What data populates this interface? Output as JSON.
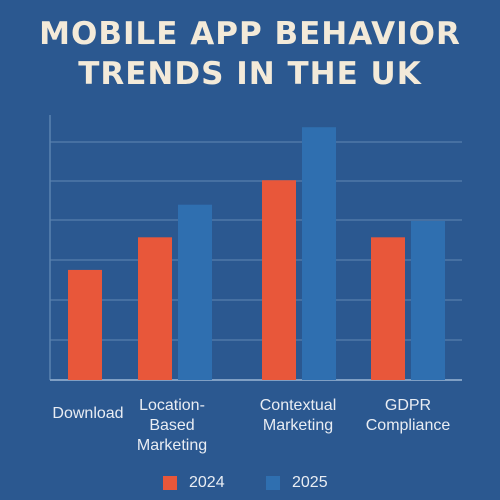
{
  "chart_data": {
    "type": "bar",
    "title": [
      "MOBILE APP BEHAVIOR",
      "TRENDS IN THE UK"
    ],
    "categories": [
      [
        "Download"
      ],
      [
        "Location-",
        "Based",
        "Marketing"
      ],
      [
        "Contextual",
        "Marketing"
      ],
      [
        "GDPR",
        "Compliance"
      ]
    ],
    "series": [
      {
        "name": "2024",
        "color": "#e8573a",
        "values": [
          27,
          35,
          49,
          35
        ]
      },
      {
        "name": "2025",
        "color": "#2f6fb0",
        "values": [
          0,
          43,
          62,
          39
        ]
      }
    ],
    "ylim": [
      0,
      65
    ],
    "grid": true,
    "legend": "bottom"
  }
}
